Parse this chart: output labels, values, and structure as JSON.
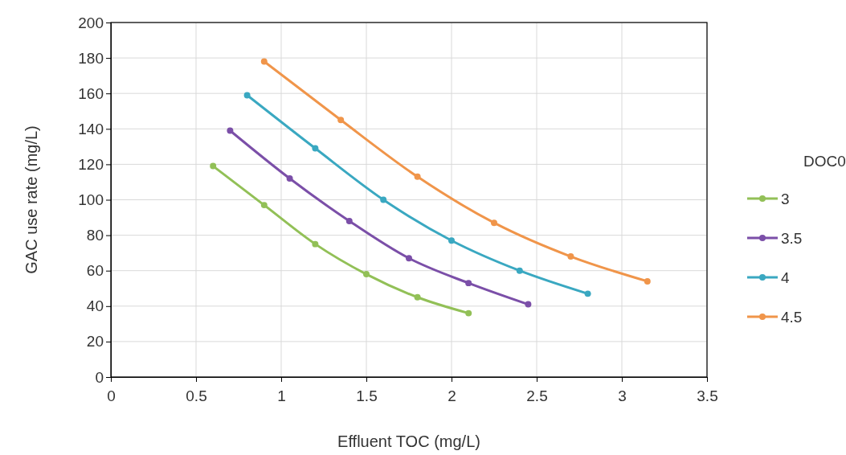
{
  "chart_data": {
    "type": "line",
    "xlabel": "Effluent TOC (mg/L)",
    "ylabel": "GAC use rate (mg/L)",
    "legend_title": "DOC0",
    "xlim": [
      0,
      3.5
    ],
    "xticks": [
      0,
      0.5,
      1,
      1.5,
      2,
      2.5,
      3,
      3.5
    ],
    "ylim": [
      0,
      200
    ],
    "yticks": [
      0,
      20,
      40,
      60,
      80,
      100,
      120,
      140,
      160,
      180,
      200
    ],
    "grid": true,
    "legend": "right",
    "marker": "circle",
    "line_style": "solid",
    "series": [
      {
        "name": "3",
        "color": "#92c057",
        "x": [
          0.6,
          0.9,
          1.2,
          1.5,
          1.8,
          2.1
        ],
        "values": [
          119,
          97,
          75,
          58,
          45,
          36
        ]
      },
      {
        "name": "3.5",
        "color": "#7b4fa8",
        "x": [
          0.7,
          1.05,
          1.4,
          1.75,
          2.1,
          2.45
        ],
        "values": [
          139,
          112,
          88,
          67,
          53,
          41
        ]
      },
      {
        "name": "4",
        "color": "#3aa8c1",
        "x": [
          0.8,
          1.2,
          1.6,
          2.0,
          2.4,
          2.8
        ],
        "values": [
          159,
          129,
          100,
          77,
          60,
          47
        ]
      },
      {
        "name": "4.5",
        "color": "#f0954a",
        "x": [
          0.9,
          1.35,
          1.8,
          2.25,
          2.7,
          3.15
        ],
        "values": [
          178,
          145,
          113,
          87,
          68,
          54
        ]
      }
    ]
  }
}
